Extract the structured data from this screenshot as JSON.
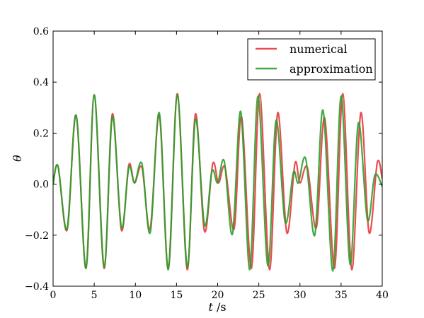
{
  "chart_data": {
    "type": "line",
    "title": "",
    "xlabel": "t /s",
    "ylabel": "θ",
    "xlim": [
      0,
      40
    ],
    "ylim": [
      -0.4,
      0.6
    ],
    "xticks": [
      "0",
      "5",
      "10",
      "15",
      "20",
      "25",
      "30",
      "35",
      "40"
    ],
    "yticks": [
      "−0.4",
      "−0.2",
      "0.0",
      "0.2",
      "0.4",
      "0.6"
    ],
    "legend_position": "top-right",
    "grid": false,
    "series": [
      {
        "name": "numerical",
        "color": "#e8393d",
        "x": [
          0,
          0.6,
          1.7,
          2.8,
          4.0,
          5.0,
          6.2,
          7.2,
          8.3,
          9.2,
          9.9,
          10.8,
          11.8,
          12.9,
          14.0,
          15.1,
          16.3,
          17.3,
          18.4,
          19.4,
          20.1,
          20.9,
          22.0,
          22.9,
          24.1,
          25.1,
          26.3,
          27.3,
          28.4,
          29.4,
          30.0,
          30.9,
          32.0,
          33.0,
          34.2,
          35.2,
          36.3,
          37.4,
          38.4,
          39.4,
          40.0
        ],
        "y": [
          0.0,
          0.07,
          -0.18,
          0.27,
          -0.33,
          0.35,
          -0.33,
          0.275,
          -0.18,
          0.075,
          0.005,
          0.065,
          -0.175,
          0.27,
          -0.33,
          0.355,
          -0.335,
          0.275,
          -0.185,
          0.08,
          0.005,
          0.065,
          -0.175,
          0.265,
          -0.33,
          0.355,
          -0.335,
          0.28,
          -0.19,
          0.082,
          0.005,
          0.065,
          -0.17,
          0.26,
          -0.33,
          0.355,
          -0.335,
          0.28,
          -0.19,
          0.085,
          0.02
        ]
      },
      {
        "name": "approximation",
        "color": "#2ca02c",
        "x": [
          0,
          0.6,
          1.7,
          2.8,
          4.0,
          5.0,
          6.2,
          7.2,
          8.3,
          9.2,
          9.9,
          10.8,
          11.8,
          12.9,
          14.0,
          15.1,
          16.3,
          17.3,
          18.4,
          19.3,
          20.0,
          20.8,
          21.8,
          22.8,
          23.9,
          24.9,
          26.1,
          27.1,
          28.2,
          29.2,
          29.8,
          30.7,
          31.8,
          32.8,
          34.0,
          35.0,
          36.1,
          37.1,
          38.2,
          39.1,
          40.0
        ],
        "y": [
          0.0,
          0.07,
          -0.175,
          0.27,
          -0.33,
          0.35,
          -0.325,
          0.265,
          -0.17,
          0.065,
          0.005,
          0.08,
          -0.19,
          0.28,
          -0.335,
          0.35,
          -0.325,
          0.255,
          -0.16,
          0.05,
          0.005,
          0.09,
          -0.195,
          0.285,
          -0.335,
          0.345,
          -0.32,
          0.25,
          -0.15,
          0.045,
          0.005,
          0.1,
          -0.2,
          0.29,
          -0.34,
          0.345,
          -0.315,
          0.24,
          -0.14,
          0.035,
          -0.01
        ]
      }
    ]
  }
}
